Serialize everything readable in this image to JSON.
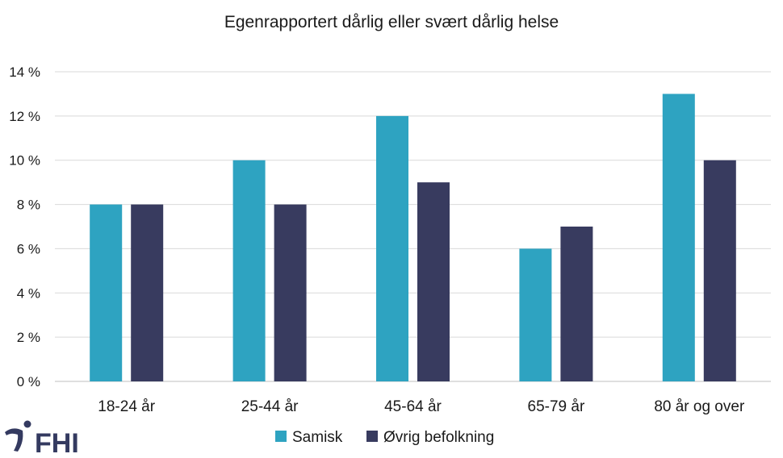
{
  "chart_data": {
    "type": "bar",
    "title": "Egenrapportert dårlig eller svært dårlig helse",
    "categories": [
      "18-24 år",
      "25-44 år",
      "45-64 år",
      "65-79 år",
      "80 år og over"
    ],
    "series": [
      {
        "name": "Samisk",
        "values": [
          8,
          10,
          12,
          6,
          13
        ],
        "color": "#2ea3c1"
      },
      {
        "name": "Øvrig befolkning",
        "values": [
          8,
          8,
          9,
          7,
          10
        ],
        "color": "#383b5f"
      }
    ],
    "ylim": [
      0,
      14
    ],
    "yticks": [
      0,
      2,
      4,
      6,
      8,
      10,
      12,
      14
    ],
    "ytick_labels": [
      "0 %",
      "2 %",
      "4 %",
      "6 %",
      "8 %",
      "10 %",
      "12 %",
      "14 %"
    ],
    "grid": true,
    "legend_position": "bottom"
  },
  "logo": {
    "text": "FHI",
    "icon": "fhi-logo-mark-icon"
  }
}
